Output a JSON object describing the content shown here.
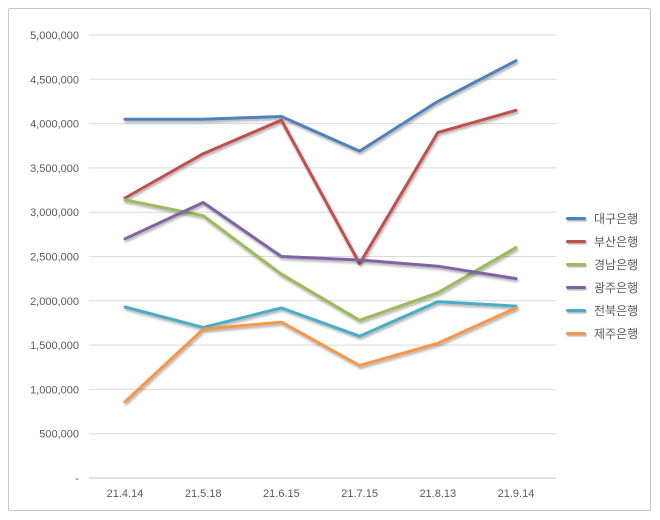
{
  "chart_data": {
    "type": "line",
    "title": "",
    "xlabel": "",
    "ylabel": "",
    "categories": [
      "21.4.14",
      "21.5.18",
      "21.6.15",
      "21.7.15",
      "21.8.13",
      "21.9.14"
    ],
    "series": [
      {
        "name": "대구은행",
        "color": "#4F81BD",
        "values": [
          4050000,
          4050000,
          4080000,
          3690000,
          4250000,
          4710000
        ]
      },
      {
        "name": "부산은행",
        "color": "#C0504D",
        "values": [
          3160000,
          3660000,
          4040000,
          2420000,
          3900000,
          4150000
        ]
      },
      {
        "name": "경남은행",
        "color": "#9BBB59",
        "values": [
          3140000,
          2960000,
          2300000,
          1780000,
          2090000,
          2600000
        ]
      },
      {
        "name": "광주은행",
        "color": "#8064A2",
        "values": [
          2700000,
          3110000,
          2500000,
          2460000,
          2390000,
          2250000
        ]
      },
      {
        "name": "전북은행",
        "color": "#4BACC6",
        "values": [
          1930000,
          1700000,
          1920000,
          1600000,
          1990000,
          1940000
        ]
      },
      {
        "name": "제주은행",
        "color": "#F79646",
        "values": [
          860000,
          1680000,
          1760000,
          1270000,
          1520000,
          1920000
        ]
      }
    ],
    "ylim": [
      0,
      5000000
    ],
    "y_tick_step": 500000,
    "y_tick_labels": [
      "-",
      "500,000",
      "1,000,000",
      "1,500,000",
      "2,000,000",
      "2,500,000",
      "3,000,000",
      "3,500,000",
      "4,000,000",
      "4,500,000",
      "5,000,000"
    ],
    "grid": true,
    "legend_position": "right"
  },
  "style": {
    "gridline_color": "#d9d9d9",
    "axis_line_color": "#bfbfbf",
    "tick_text_color": "#595959",
    "frame_border_color": "#c6c9cc",
    "background_color": "#ffffff"
  }
}
